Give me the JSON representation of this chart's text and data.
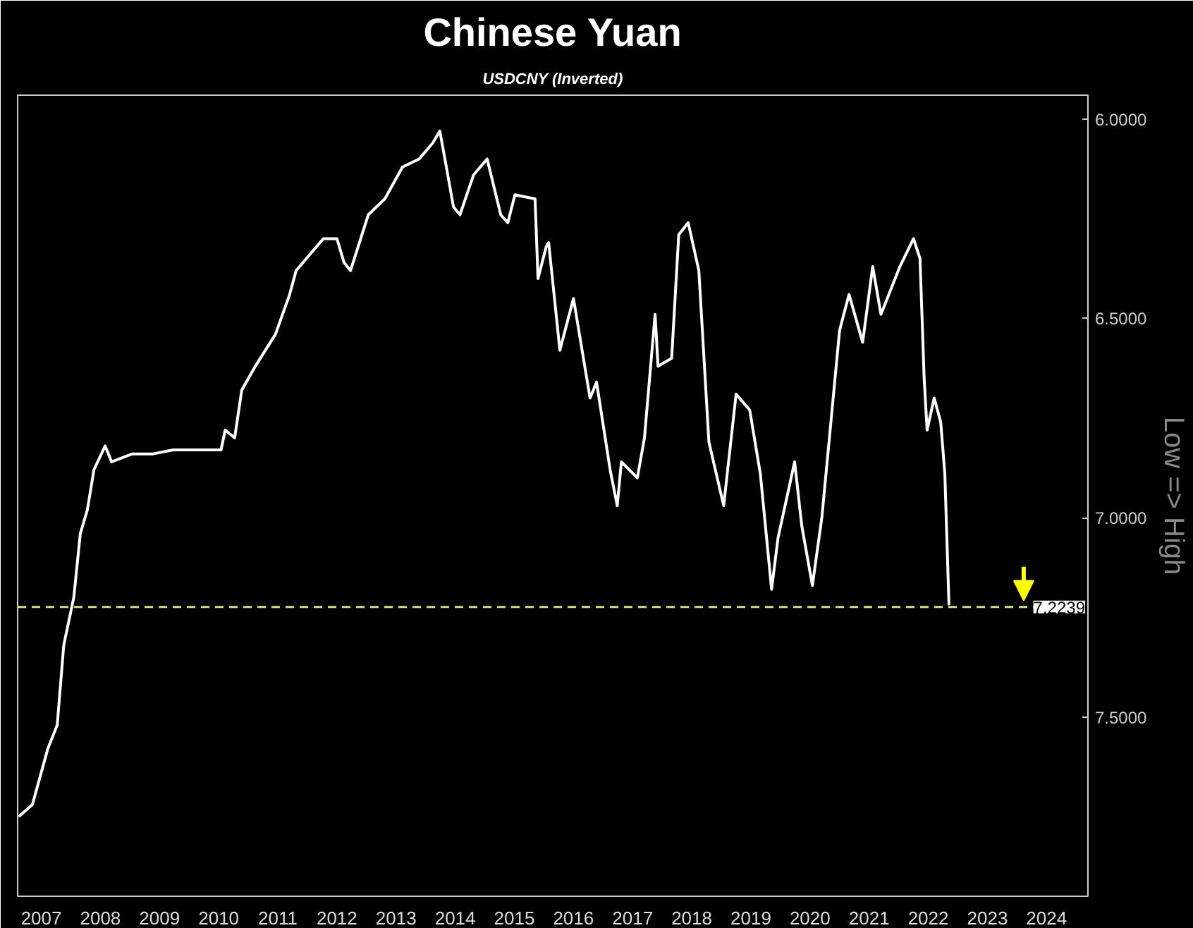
{
  "chart_data": {
    "type": "line",
    "title": "Chinese Yuan",
    "subtitle": "USDCNY (Inverted)",
    "ylabel": "Low => High",
    "x": [
      2007.12,
      2007.35,
      2007.61,
      2007.77,
      2007.88,
      2008.05,
      2008.16,
      2008.28,
      2008.39,
      2008.58,
      2008.69,
      2009.04,
      2009.39,
      2009.73,
      2010.54,
      2010.61,
      2010.77,
      2010.89,
      2011.12,
      2011.46,
      2011.7,
      2011.81,
      2012.04,
      2012.27,
      2012.5,
      2012.62,
      2012.73,
      2013.03,
      2013.31,
      2013.61,
      2013.89,
      2014.12,
      2014.24,
      2014.35,
      2014.47,
      2014.58,
      2014.81,
      2015.04,
      2015.27,
      2015.39,
      2015.51,
      2015.85,
      2015.9,
      2016.04,
      2016.08,
      2016.27,
      2016.5,
      2016.78,
      2016.89,
      2017.12,
      2017.24,
      2017.31,
      2017.58,
      2017.7,
      2017.88,
      2017.93,
      2018.16,
      2018.28,
      2018.44,
      2018.62,
      2018.79,
      2019.04,
      2019.25,
      2019.48,
      2019.66,
      2019.85,
      2019.96,
      2020.24,
      2020.36,
      2020.54,
      2020.7,
      2021.0,
      2021.16,
      2021.39,
      2021.56,
      2021.7,
      2022.02,
      2022.25,
      2022.36,
      2022.43,
      2022.48,
      2022.6,
      2022.71,
      2022.78,
      2022.85
    ],
    "series": [
      {
        "color": "#ffffff",
        "values": [
          7.75,
          7.72,
          7.58,
          7.52,
          7.32,
          7.2,
          7.04,
          6.98,
          6.88,
          6.82,
          6.86,
          6.84,
          6.84,
          6.83,
          6.83,
          6.78,
          6.8,
          6.68,
          6.62,
          6.54,
          6.44,
          6.38,
          6.34,
          6.3,
          6.3,
          6.36,
          6.38,
          6.24,
          6.2,
          6.12,
          6.1,
          6.06,
          6.03,
          6.12,
          6.22,
          6.24,
          6.14,
          6.1,
          6.24,
          6.26,
          6.19,
          6.2,
          6.4,
          6.32,
          6.31,
          6.58,
          6.45,
          6.7,
          6.66,
          6.88,
          6.97,
          6.86,
          6.9,
          6.8,
          6.49,
          6.62,
          6.6,
          6.29,
          6.26,
          6.38,
          6.81,
          6.97,
          6.69,
          6.73,
          6.89,
          7.18,
          7.05,
          6.86,
          7.02,
          7.17,
          7.0,
          6.53,
          6.44,
          6.56,
          6.37,
          6.49,
          6.37,
          6.3,
          6.35,
          6.65,
          6.78,
          6.7,
          6.76,
          6.89,
          7.22
        ]
      }
    ],
    "xlim": [
      2007.1,
      2025.2
    ],
    "xticks": [
      {
        "value": 2007.5,
        "label": "2007"
      },
      {
        "value": 2008.5,
        "label": "2008"
      },
      {
        "value": 2009.5,
        "label": "2009"
      },
      {
        "value": 2010.5,
        "label": "2010"
      },
      {
        "value": 2011.5,
        "label": "2011"
      },
      {
        "value": 2012.5,
        "label": "2012"
      },
      {
        "value": 2013.5,
        "label": "2013"
      },
      {
        "value": 2014.5,
        "label": "2014"
      },
      {
        "value": 2015.5,
        "label": "2015"
      },
      {
        "value": 2016.5,
        "label": "2016"
      },
      {
        "value": 2017.5,
        "label": "2017"
      },
      {
        "value": 2018.5,
        "label": "2018"
      },
      {
        "value": 2019.5,
        "label": "2019"
      },
      {
        "value": 2020.5,
        "label": "2020"
      },
      {
        "value": 2021.5,
        "label": "2021"
      },
      {
        "value": 2022.5,
        "label": "2022"
      },
      {
        "value": 2023.5,
        "label": "2023"
      },
      {
        "value": 2024.5,
        "label": "2024"
      }
    ],
    "ylim": [
      7.95,
      5.94
    ],
    "yticks": [
      {
        "value": 6,
        "label": "6.0000"
      },
      {
        "value": 6.5,
        "label": "6.5000"
      },
      {
        "value": 7,
        "label": "7.0000"
      },
      {
        "value": 7.5,
        "label": "7.5000"
      }
    ],
    "ref_lines": [
      {
        "axis": "y",
        "value": 7.2239,
        "label": "7.2239",
        "color": "#d8d87a",
        "line_style": "dashed"
      }
    ],
    "grid": false
  }
}
